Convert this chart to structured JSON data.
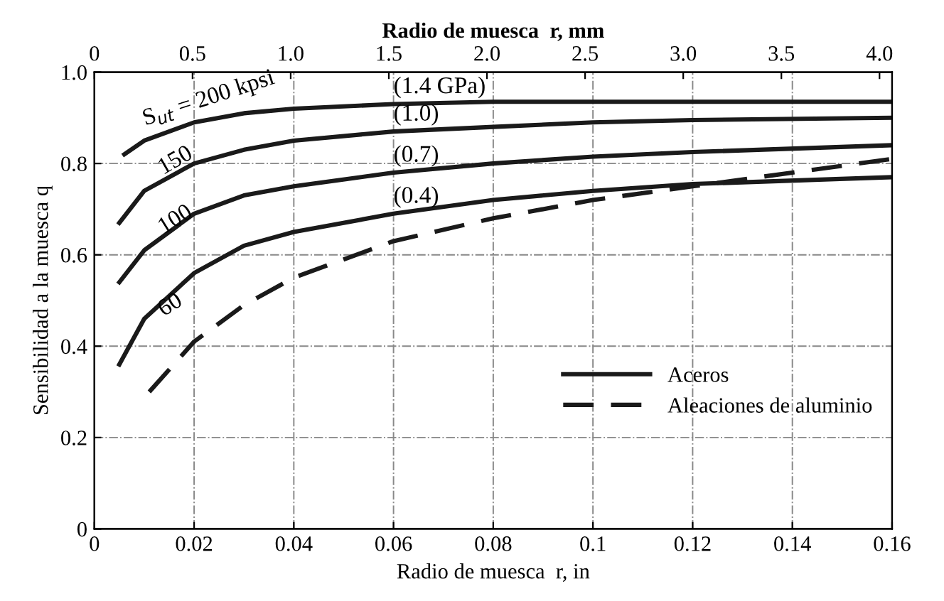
{
  "chart_data": {
    "type": "line",
    "xlabel": "Radio de muesca  r, in",
    "ylabel": "Sensibilidad a la muesca q",
    "x2label": "Radio de muesca  r, mm",
    "xlim": [
      0,
      0.16
    ],
    "xticks": [
      0,
      0.02,
      0.04,
      0.06,
      0.08,
      0.1,
      0.12,
      0.14,
      0.16
    ],
    "x2lim": [
      0,
      4.064
    ],
    "x2ticks": [
      0,
      0.5,
      {
        "value": 1,
        "label": "1.0"
      },
      1.5,
      {
        "value": 2,
        "label": "2.0"
      },
      2.5,
      {
        "value": 3,
        "label": "3.0"
      },
      3.5,
      {
        "value": 4,
        "label": "4.0"
      }
    ],
    "ylim": [
      0,
      1.0
    ],
    "yticks": [
      0,
      0.2,
      0.4,
      0.6,
      0.8,
      {
        "value": 1,
        "label": "1.0"
      }
    ],
    "grid": true,
    "legend": "right",
    "marker": "none",
    "series": [
      {
        "name": "Aceros",
        "color": "#1a1a1a",
        "line_style": "solid",
        "x": [
          0.006,
          0.01,
          0.02,
          0.03,
          0.04,
          0.06,
          0.08,
          0.1,
          0.12,
          0.16
        ],
        "values": [
          0.82,
          0.85,
          0.89,
          0.91,
          0.92,
          0.93,
          0.935,
          0.935,
          0.935,
          0.935
        ]
      },
      {
        "color": "#1a1a1a",
        "line_style": "solid",
        "x": [
          0.005,
          0.01,
          0.02,
          0.03,
          0.04,
          0.06,
          0.08,
          0.1,
          0.12,
          0.16
        ],
        "values": [
          0.67,
          0.74,
          0.8,
          0.83,
          0.85,
          0.87,
          0.88,
          0.89,
          0.895,
          0.9
        ]
      },
      {
        "color": "#1a1a1a",
        "line_style": "solid",
        "x": [
          0.005,
          0.01,
          0.02,
          0.03,
          0.04,
          0.06,
          0.08,
          0.1,
          0.12,
          0.16
        ],
        "values": [
          0.54,
          0.61,
          0.69,
          0.73,
          0.75,
          0.78,
          0.8,
          0.815,
          0.825,
          0.84
        ]
      },
      {
        "color": "#1a1a1a",
        "line_style": "solid",
        "x": [
          0.005,
          0.01,
          0.02,
          0.03,
          0.04,
          0.06,
          0.08,
          0.1,
          0.12,
          0.16
        ],
        "values": [
          0.36,
          0.46,
          0.56,
          0.62,
          0.65,
          0.69,
          0.72,
          0.74,
          0.755,
          0.77
        ]
      },
      {
        "name": "Aleaciones de aluminio",
        "color": "#1a1a1a",
        "line_style": "dashed",
        "x": [
          0.011,
          0.02,
          0.03,
          0.04,
          0.06,
          0.08,
          0.1,
          0.12,
          0.14,
          0.16
        ],
        "values": [
          0.3,
          0.41,
          0.49,
          0.55,
          0.63,
          0.68,
          0.72,
          0.75,
          0.78,
          0.81
        ]
      }
    ],
    "annotations": [
      "S$_{ut}$ = 200 kpsi",
      "150",
      "100",
      "60",
      "(1.4 GPa)",
      "(1.0)",
      "(0.7)",
      "(0.4)"
    ]
  }
}
